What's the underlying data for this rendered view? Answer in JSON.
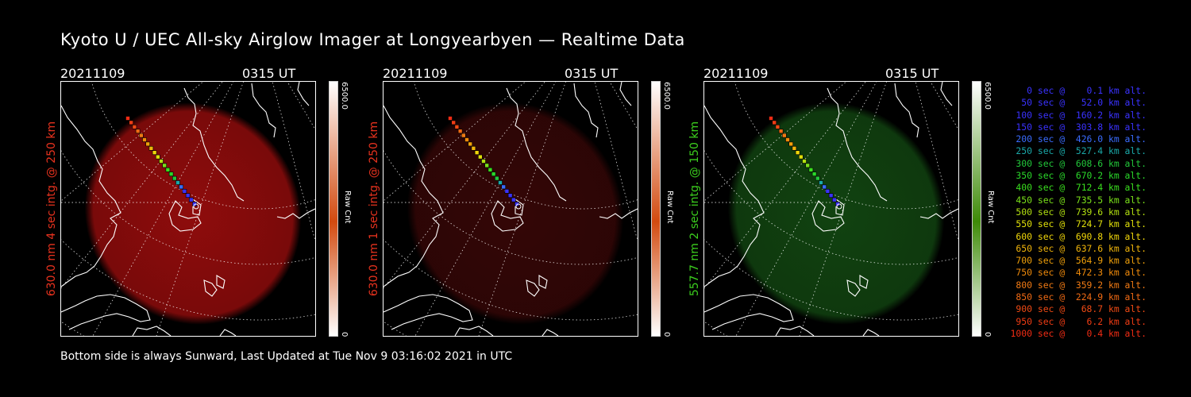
{
  "title": "Kyoto U / UEC All-sky Airglow Imager at Longyearbyen — Realtime Data",
  "footer": "Bottom side is always Sunward, Last Updated at Tue Nov  9 03:16:02 2021 in UTC",
  "panels": [
    {
      "date": "20211109",
      "time": "0315 UT",
      "ylabel": "630.0 nm 4 sec intg. @ 250 km",
      "label_color": "#e8321e",
      "glow_color": "#a80e0e",
      "glow_strength": 0.85,
      "colorbar_max": "6500.0",
      "colorbar_min": "0",
      "colorbar_label": "Raw Cnt",
      "colorbar_color": "#d24a0f"
    },
    {
      "date": "20211109",
      "time": "0315 UT",
      "ylabel": "630.0 nm 1 sec intg. @ 250 km",
      "label_color": "#e8321e",
      "glow_color": "#3a0707",
      "glow_strength": 0.9,
      "colorbar_max": "6500.0",
      "colorbar_min": "0",
      "colorbar_label": "Raw Cnt",
      "colorbar_color": "#d24a0f"
    },
    {
      "date": "20211109",
      "time": "0315 UT",
      "ylabel": "557.7 nm 2 sec intg. @ 150 km",
      "label_color": "#3ccf1e",
      "glow_color": "#134a12",
      "glow_strength": 0.9,
      "colorbar_max": "6500.0",
      "colorbar_min": "0",
      "colorbar_label": "Raw Cnt",
      "colorbar_color": "#3e8a08"
    }
  ],
  "legend": [
    {
      "text": "   0 sec @    0.1 km alt.",
      "color": "#3a32ff"
    },
    {
      "text": "  50 sec @   52.0 km alt.",
      "color": "#3a32ff"
    },
    {
      "text": " 100 sec @  160.2 km alt.",
      "color": "#3a32ff"
    },
    {
      "text": " 150 sec @  303.8 km alt.",
      "color": "#3a32ff"
    },
    {
      "text": " 200 sec @  426.0 km alt.",
      "color": "#3a6cff"
    },
    {
      "text": " 250 sec @  527.4 km alt.",
      "color": "#1aa8a8"
    },
    {
      "text": " 300 sec @  608.6 km alt.",
      "color": "#22c83a"
    },
    {
      "text": " 350 sec @  670.2 km alt.",
      "color": "#2ad82a"
    },
    {
      "text": " 400 sec @  712.4 km alt.",
      "color": "#3ae01e"
    },
    {
      "text": " 450 sec @  735.5 km alt.",
      "color": "#7ae01a"
    },
    {
      "text": " 500 sec @  739.6 km alt.",
      "color": "#b2e010"
    },
    {
      "text": " 550 sec @  724.7 km alt.",
      "color": "#e0e00a"
    },
    {
      "text": " 600 sec @  690.8 km alt.",
      "color": "#f0d60a"
    },
    {
      "text": " 650 sec @  637.6 km alt.",
      "color": "#f0b40a"
    },
    {
      "text": " 700 sec @  564.9 km alt.",
      "color": "#f0a00a"
    },
    {
      "text": " 750 sec @  472.3 km alt.",
      "color": "#f08a0a"
    },
    {
      "text": " 800 sec @  359.2 km alt.",
      "color": "#f07a14"
    },
    {
      "text": " 850 sec @  224.9 km alt.",
      "color": "#f06a14"
    },
    {
      "text": " 900 sec @   68.7 km alt.",
      "color": "#f04a14"
    },
    {
      "text": " 950 sec @    6.2 km alt.",
      "color": "#f03c14"
    },
    {
      "text": "1000 sec @    0.4 km alt.",
      "color": "#f02c14"
    }
  ]
}
